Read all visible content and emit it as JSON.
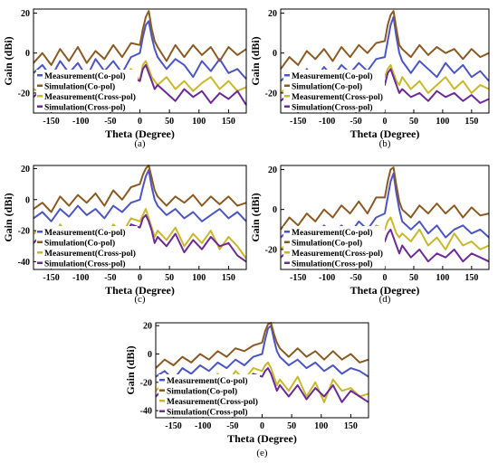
{
  "colors": {
    "measurement_co": "#4c55c4",
    "simulation_co": "#8b5a22",
    "measurement_cross": "#c9b829",
    "simulation_cross": "#6c2a96",
    "axis": "#000000",
    "background": "#ffffff"
  },
  "chart_data": [
    {
      "type": "line",
      "caption": "(a)",
      "xlabel": "Theta (Degree)",
      "ylabel": "Gain (dBi)",
      "xlim": [
        -180,
        180
      ],
      "ylim": [
        -30,
        22
      ],
      "xticks": [
        -150,
        -100,
        -50,
        0,
        50,
        100,
        150
      ],
      "yticks": [
        20,
        0,
        -20
      ],
      "legend_placement": "bottom-left",
      "x": [
        -180,
        -165,
        -150,
        -135,
        -120,
        -105,
        -90,
        -75,
        -60,
        -45,
        -30,
        -15,
        0,
        5,
        10,
        15,
        20,
        25,
        30,
        45,
        60,
        75,
        90,
        105,
        120,
        135,
        150,
        165,
        180
      ],
      "series": [
        {
          "name": "Measurement(Co-pol)",
          "values": [
            -10,
            -6,
            -12,
            -4,
            -10,
            -5,
            -12,
            -3,
            -9,
            -4,
            -10,
            -2,
            0,
            8,
            14,
            16,
            8,
            2,
            -2,
            -8,
            -3,
            -6,
            -12,
            -4,
            -9,
            -3,
            -10,
            -8,
            -13
          ]
        },
        {
          "name": "Simulation(Co-pol)",
          "values": [
            -5,
            0,
            -6,
            2,
            -4,
            3,
            -5,
            1,
            -3,
            4,
            -2,
            5,
            4,
            12,
            18,
            21,
            12,
            6,
            3,
            -4,
            4,
            -2,
            4,
            -1,
            3,
            -4,
            3,
            -1,
            2
          ]
        },
        {
          "name": "Measurement(Cross-pol)",
          "values": [
            -18,
            -20,
            -14,
            -22,
            -16,
            -19,
            -13,
            -20,
            -10,
            -17,
            -12,
            -8,
            -14,
            -6,
            -4,
            -8,
            -12,
            -14,
            -16,
            -12,
            -18,
            -14,
            -19,
            -15,
            -12,
            -18,
            -14,
            -19,
            -17
          ]
        },
        {
          "name": "Simulation(Cross-pol)",
          "values": [
            -22,
            -18,
            -24,
            -17,
            -21,
            -19,
            -23,
            -17,
            -20,
            -16,
            -19,
            -12,
            -14,
            -8,
            -6,
            -10,
            -14,
            -18,
            -16,
            -20,
            -24,
            -18,
            -22,
            -19,
            -25,
            -20,
            -23,
            -19,
            -26
          ]
        }
      ]
    },
    {
      "type": "line",
      "caption": "(b)",
      "xlabel": "Theta (Degree)",
      "ylabel": "Gain (dBi)",
      "xlim": [
        -180,
        180
      ],
      "ylim": [
        -30,
        22
      ],
      "xticks": [
        -150,
        -100,
        -50,
        0,
        50,
        100,
        150
      ],
      "yticks": [
        20,
        0,
        -20
      ],
      "legend_placement": "bottom-left",
      "x": [
        -180,
        -165,
        -150,
        -135,
        -120,
        -105,
        -90,
        -75,
        -60,
        -45,
        -30,
        -15,
        0,
        5,
        10,
        15,
        20,
        25,
        30,
        45,
        60,
        75,
        90,
        105,
        120,
        135,
        150,
        165,
        180
      ],
      "series": [
        {
          "name": "Measurement(Co-pol)",
          "values": [
            -14,
            -10,
            -16,
            -8,
            -13,
            -7,
            -12,
            -6,
            -10,
            -5,
            -9,
            -3,
            -2,
            6,
            14,
            18,
            8,
            0,
            -4,
            -10,
            -4,
            -8,
            -12,
            -5,
            -10,
            -6,
            -12,
            -9,
            -14
          ]
        },
        {
          "name": "Simulation(Co-pol)",
          "values": [
            -8,
            -2,
            -6,
            1,
            -3,
            2,
            -4,
            3,
            -2,
            4,
            0,
            5,
            6,
            14,
            19,
            21,
            12,
            4,
            2,
            -2,
            4,
            -1,
            3,
            0,
            2,
            -3,
            2,
            -2,
            0
          ]
        },
        {
          "name": "Measurement(Cross-pol)",
          "values": [
            -20,
            -16,
            -22,
            -18,
            -15,
            -20,
            -16,
            -14,
            -18,
            -12,
            -16,
            -10,
            -12,
            -8,
            -6,
            -10,
            -14,
            -16,
            -12,
            -18,
            -14,
            -20,
            -16,
            -12,
            -18,
            -14,
            -20,
            -16,
            -18
          ]
        },
        {
          "name": "Simulation(Cross-pol)",
          "values": [
            -24,
            -20,
            -26,
            -19,
            -22,
            -18,
            -24,
            -20,
            -22,
            -17,
            -20,
            -14,
            -16,
            -10,
            -8,
            -12,
            -16,
            -20,
            -18,
            -22,
            -20,
            -24,
            -19,
            -22,
            -20,
            -24,
            -21,
            -25,
            -23
          ]
        }
      ]
    },
    {
      "type": "line",
      "caption": "(c)",
      "xlabel": "Theta (Degree)",
      "ylabel": "Gain (dBi)",
      "xlim": [
        -180,
        180
      ],
      "ylim": [
        -45,
        22
      ],
      "xticks": [
        -150,
        -100,
        -50,
        0,
        50,
        100,
        150
      ],
      "yticks": [
        20,
        0,
        -20,
        -40
      ],
      "legend_placement": "bottom-left",
      "x": [
        -180,
        -165,
        -150,
        -135,
        -120,
        -105,
        -90,
        -75,
        -60,
        -45,
        -30,
        -15,
        0,
        5,
        10,
        15,
        20,
        25,
        30,
        45,
        60,
        75,
        90,
        105,
        120,
        135,
        150,
        165,
        180
      ],
      "series": [
        {
          "name": "Measurement(Co-pol)",
          "values": [
            -12,
            -8,
            -14,
            -6,
            -11,
            -4,
            -10,
            -6,
            -12,
            -4,
            -8,
            -2,
            0,
            8,
            15,
            19,
            8,
            0,
            -4,
            -10,
            -6,
            -12,
            -8,
            -14,
            -10,
            -6,
            -12,
            -8,
            -14
          ]
        },
        {
          "name": "Simulation(Co-pol)",
          "values": [
            -6,
            -2,
            -8,
            2,
            -4,
            3,
            -2,
            4,
            -4,
            6,
            0,
            8,
            10,
            16,
            20,
            22,
            14,
            6,
            2,
            -4,
            2,
            -2,
            3,
            -4,
            2,
            -3,
            2,
            -4,
            -2
          ]
        },
        {
          "name": "Measurement(Cross-pol)",
          "values": [
            -22,
            -18,
            -30,
            -16,
            -24,
            -20,
            -34,
            -18,
            -26,
            -16,
            -22,
            -12,
            -14,
            -10,
            -6,
            -12,
            -18,
            -24,
            -20,
            -26,
            -18,
            -30,
            -22,
            -28,
            -20,
            -32,
            -24,
            -30,
            -38
          ]
        },
        {
          "name": "Simulation(Cross-pol)",
          "values": [
            -28,
            -22,
            -34,
            -20,
            -30,
            -24,
            -36,
            -22,
            -30,
            -20,
            -26,
            -16,
            -18,
            -12,
            -10,
            -14,
            -20,
            -28,
            -24,
            -30,
            -22,
            -34,
            -26,
            -32,
            -24,
            -30,
            -28,
            -36,
            -40
          ]
        }
      ]
    },
    {
      "type": "line",
      "caption": "(d)",
      "xlabel": "Theta (Degree)",
      "ylabel": "Gain (dBi)",
      "xlim": [
        -180,
        180
      ],
      "ylim": [
        -30,
        22
      ],
      "xticks": [
        -150,
        -100,
        -50,
        0,
        50,
        100,
        150
      ],
      "yticks": [
        20,
        0,
        -20
      ],
      "legend_placement": "bottom-left",
      "x": [
        -180,
        -165,
        -150,
        -135,
        -120,
        -105,
        -90,
        -75,
        -60,
        -45,
        -30,
        -15,
        0,
        5,
        10,
        15,
        20,
        25,
        30,
        45,
        60,
        75,
        90,
        105,
        120,
        135,
        150,
        165,
        180
      ],
      "series": [
        {
          "name": "Measurement(Co-pol)",
          "values": [
            -14,
            -10,
            -16,
            -10,
            -14,
            -8,
            -12,
            -8,
            -12,
            -6,
            -10,
            -4,
            -2,
            6,
            14,
            18,
            8,
            0,
            -6,
            -10,
            -6,
            -12,
            -8,
            -14,
            -10,
            -8,
            -12,
            -10,
            -14
          ]
        },
        {
          "name": "Simulation(Co-pol)",
          "values": [
            -10,
            -4,
            -8,
            -2,
            -6,
            0,
            -4,
            2,
            -2,
            4,
            -2,
            6,
            6,
            14,
            20,
            21,
            12,
            4,
            0,
            -4,
            2,
            -2,
            3,
            -2,
            2,
            -4,
            1,
            -3,
            -2
          ]
        },
        {
          "name": "Measurement(Cross-pol)",
          "values": [
            -20,
            -16,
            -22,
            -14,
            -20,
            -16,
            -22,
            -12,
            -18,
            -10,
            -16,
            -8,
            -10,
            -6,
            -4,
            -8,
            -12,
            -14,
            -12,
            -16,
            -10,
            -18,
            -14,
            -20,
            -12,
            -18,
            -16,
            -20,
            -18
          ]
        },
        {
          "name": "Simulation(Cross-pol)",
          "values": [
            -24,
            -20,
            -26,
            -18,
            -22,
            -20,
            -24,
            -18,
            -22,
            -16,
            -20,
            -14,
            -16,
            -12,
            -10,
            -14,
            -18,
            -22,
            -18,
            -24,
            -20,
            -26,
            -22,
            -24,
            -20,
            -26,
            -22,
            -24,
            -26
          ]
        }
      ]
    },
    {
      "type": "line",
      "caption": "(e)",
      "xlabel": "Theta (Degree)",
      "ylabel": "Gain (dBi)",
      "xlim": [
        -180,
        180
      ],
      "ylim": [
        -45,
        22
      ],
      "xticks": [
        -150,
        -100,
        -50,
        0,
        50,
        100,
        150
      ],
      "yticks": [
        20,
        0,
        -20,
        -40
      ],
      "legend_placement": "bottom-left",
      "x": [
        -180,
        -165,
        -150,
        -135,
        -120,
        -105,
        -90,
        -75,
        -60,
        -45,
        -30,
        -15,
        0,
        5,
        10,
        15,
        20,
        25,
        30,
        45,
        60,
        75,
        90,
        105,
        120,
        135,
        150,
        165,
        180
      ],
      "series": [
        {
          "name": "Measurement(Co-pol)",
          "values": [
            -16,
            -12,
            -18,
            -10,
            -14,
            -8,
            -12,
            -6,
            -10,
            -4,
            -8,
            -2,
            0,
            10,
            18,
            20,
            10,
            2,
            -2,
            -8,
            -4,
            -10,
            -6,
            -12,
            -8,
            -14,
            -10,
            -12,
            -16
          ]
        },
        {
          "name": "Simulation(Co-pol)",
          "values": [
            -10,
            -4,
            -8,
            -2,
            -6,
            0,
            -4,
            2,
            -2,
            4,
            2,
            6,
            8,
            16,
            21,
            22,
            14,
            8,
            4,
            -2,
            4,
            -2,
            2,
            -4,
            2,
            -4,
            0,
            -6,
            -4
          ]
        },
        {
          "name": "Measurement(Cross-pol)",
          "values": [
            -26,
            -20,
            -30,
            -18,
            -28,
            -16,
            -24,
            -14,
            -22,
            -12,
            -18,
            -10,
            -12,
            -8,
            -6,
            -10,
            -16,
            -22,
            -18,
            -26,
            -16,
            -30,
            -20,
            -34,
            -18,
            -26,
            -24,
            -30,
            -28
          ]
        },
        {
          "name": "Simulation(Cross-pol)",
          "values": [
            -30,
            -24,
            -34,
            -22,
            -30,
            -20,
            -28,
            -18,
            -26,
            -16,
            -22,
            -14,
            -16,
            -12,
            -10,
            -14,
            -20,
            -26,
            -22,
            -30,
            -22,
            -32,
            -24,
            -30,
            -22,
            -34,
            -26,
            -30,
            -34
          ]
        }
      ]
    }
  ]
}
